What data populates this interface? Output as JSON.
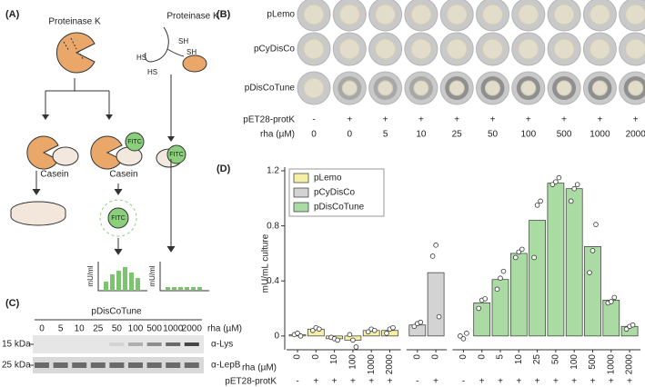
{
  "panel_labels": [
    "(A)",
    "(B)",
    "(C)",
    "(D)"
  ],
  "panel_a": {
    "enzyme_left": "Proteinase K",
    "enzyme_right": "Proteinase K",
    "thiols": [
      "SH",
      "SH",
      "HS",
      "HS"
    ],
    "substrate": [
      "Casein",
      "Casein"
    ],
    "fitc": [
      "FITC",
      "FITC",
      "FITC"
    ],
    "unit": [
      "mU/ml",
      "mU/ml"
    ]
  },
  "panel_b": {
    "rows": [
      "pLemo",
      "pCyDisCo",
      "pDisCoTune"
    ],
    "protk_label": "pET28-protK",
    "protk": [
      "-",
      "+",
      "+",
      "+",
      "+",
      "+",
      "+",
      "+",
      "+",
      "+"
    ],
    "rha_label": "rha (µM)",
    "rha": [
      "0",
      "0",
      "5",
      "10",
      "25",
      "50",
      "100",
      "500",
      "1000",
      "2000"
    ]
  },
  "panel_c": {
    "strain": "pDisCoTune",
    "rha": [
      "0",
      "5",
      "10",
      "25",
      "50",
      "100",
      "500",
      "1000",
      "2000"
    ],
    "rha_label": "rha (µM)",
    "markers": [
      "15 kDa",
      "25 kDa"
    ],
    "antibodies": [
      "α-Lys",
      "α-LepB"
    ]
  },
  "chart_data": {
    "type": "bar",
    "ylabel": "mU/mL culture",
    "ylim": [
      -0.1,
      1.2
    ],
    "yticks": [
      0,
      0.4,
      0.8,
      1.2
    ],
    "categories": [
      "0",
      "0",
      "10",
      "100",
      "1000",
      "2000",
      "0",
      "0",
      "0",
      "0",
      "5",
      "10",
      "25",
      "50",
      "100",
      "500",
      "1000",
      "2000"
    ],
    "rha_label": "rha (µM)",
    "protk_label": "pET28-protK",
    "protk": [
      "-",
      "+",
      "+",
      "+",
      "+",
      "+",
      "-",
      "+",
      "-",
      "+",
      "+",
      "+",
      "+",
      "+",
      "+",
      "+",
      "+",
      "+"
    ],
    "series": [
      {
        "name": "pLemo",
        "color": "#f6efa6",
        "values": [
          0.01,
          0.05,
          -0.02,
          -0.03,
          0.04,
          0.04,
          null,
          null,
          null,
          null,
          null,
          null,
          null,
          null,
          null,
          null,
          null,
          null
        ],
        "replicates": [
          [
            0.01,
            0.02,
            0.0
          ],
          [
            0.04,
            0.06,
            0.05
          ],
          [
            -0.01,
            -0.02,
            -0.03
          ],
          [
            0.01,
            -0.03,
            -0.08
          ],
          [
            0.03,
            0.05,
            0.04
          ],
          [
            0.02,
            0.05,
            0.06
          ],
          null,
          null,
          null,
          null,
          null,
          null,
          null,
          null,
          null,
          null,
          null,
          null
        ]
      },
      {
        "name": "pCyDisCo",
        "color": "#d3d3d3",
        "values": [
          null,
          null,
          null,
          null,
          null,
          null,
          0.08,
          0.46,
          null,
          null,
          null,
          null,
          null,
          null,
          null,
          null,
          null,
          null
        ],
        "replicates": [
          null,
          null,
          null,
          null,
          null,
          null,
          [
            0.07,
            0.09,
            0.1
          ],
          [
            0.58,
            0.66,
            0.14
          ],
          null,
          null,
          null,
          null,
          null,
          null,
          null,
          null,
          null,
          null
        ]
      },
      {
        "name": "pDisCoTune",
        "color": "#a9dba3",
        "values": [
          null,
          null,
          null,
          null,
          null,
          null,
          null,
          null,
          0,
          0.24,
          0.41,
          0.6,
          0.84,
          1.11,
          1.07,
          0.65,
          0.26,
          0.07
        ],
        "replicates": [
          null,
          null,
          null,
          null,
          null,
          null,
          null,
          null,
          [
            0.0,
            -0.02,
            0.02
          ],
          [
            0.2,
            0.26,
            0.27
          ],
          [
            0.34,
            0.42,
            0.47
          ],
          [
            0.57,
            0.61,
            0.63
          ],
          [
            0.57,
            0.95,
            0.98
          ],
          [
            1.1,
            1.12,
            1.15
          ],
          [
            0.98,
            1.07,
            1.1
          ],
          [
            0.46,
            0.62,
            0.81
          ],
          [
            0.24,
            0.25,
            0.28
          ],
          [
            0.05,
            0.07,
            0.08
          ]
        ]
      }
    ]
  }
}
